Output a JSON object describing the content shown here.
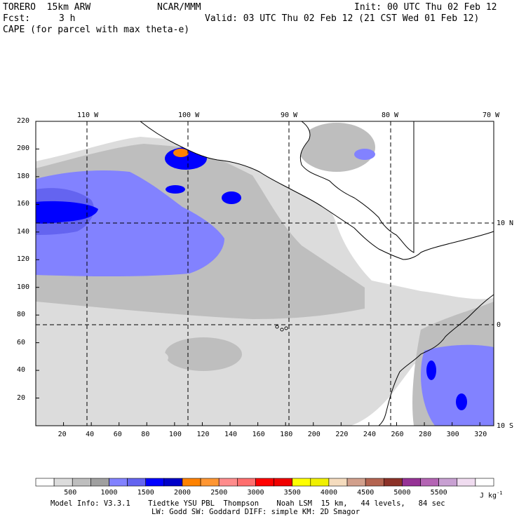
{
  "header": {
    "model": "TORERO  15km ARW",
    "org": "NCAR/MMM",
    "init": "Init: 00 UTC Thu 02 Feb 12",
    "fcst_label": "Fcst:",
    "fcst_value": "3 h",
    "valid": "Valid: 03 UTC Thu 02 Feb 12 (21 CST Wed 01 Feb 12)",
    "field": "CAPE (for parcel with max theta-e)"
  },
  "top_lon_labels": [
    "110 W",
    "100 W",
    "90 W",
    "80 W",
    "70 W"
  ],
  "right_lat_labels": [
    "10 N",
    "0",
    "10 S"
  ],
  "y_ticks": [
    "220",
    "200",
    "180",
    "160",
    "140",
    "120",
    "100",
    "80",
    "60",
    "40",
    "20"
  ],
  "x_ticks": [
    "20",
    "40",
    "60",
    "80",
    "100",
    "120",
    "140",
    "160",
    "180",
    "200",
    "220",
    "240",
    "260",
    "280",
    "300",
    "320"
  ],
  "colorbar": {
    "labels": [
      "500",
      "1000",
      "1500",
      "2000",
      "2500",
      "3000",
      "3500",
      "4000",
      "4500",
      "5000",
      "5500"
    ],
    "units": "J kg",
    "units_exp": "-1",
    "colors": [
      "#ffffff",
      "#dcdcdc",
      "#bebebe",
      "#a0a0a0",
      "#8282ff",
      "#6464f0",
      "#0000ff",
      "#0000c8",
      "#ff8200",
      "#ff9632",
      "#ff8c8c",
      "#ff6e6e",
      "#ff0000",
      "#f00000",
      "#ffff00",
      "#f0f000",
      "#f5dcbe",
      "#d2a08c",
      "#b46450",
      "#8c3228",
      "#963296",
      "#b464b4",
      "#c8a0d2",
      "#f0dcf0",
      "#ffffff"
    ]
  },
  "footer": {
    "line1": "Model Info: V3.3.1    Tiedtke YSU PBL  Thompson    Noah LSM  15 km,   44 levels,   84 sec",
    "line2": "LW: Godd SW: Goddard DIFF: simple KM: 2D Smagor"
  },
  "map_colors": {
    "light": "#dcdcdc",
    "mid": "#bebebe",
    "blue_light": "#8282ff",
    "blue_mid": "#6464f0",
    "blue": "#0000ff",
    "orange": "#ff8200"
  }
}
